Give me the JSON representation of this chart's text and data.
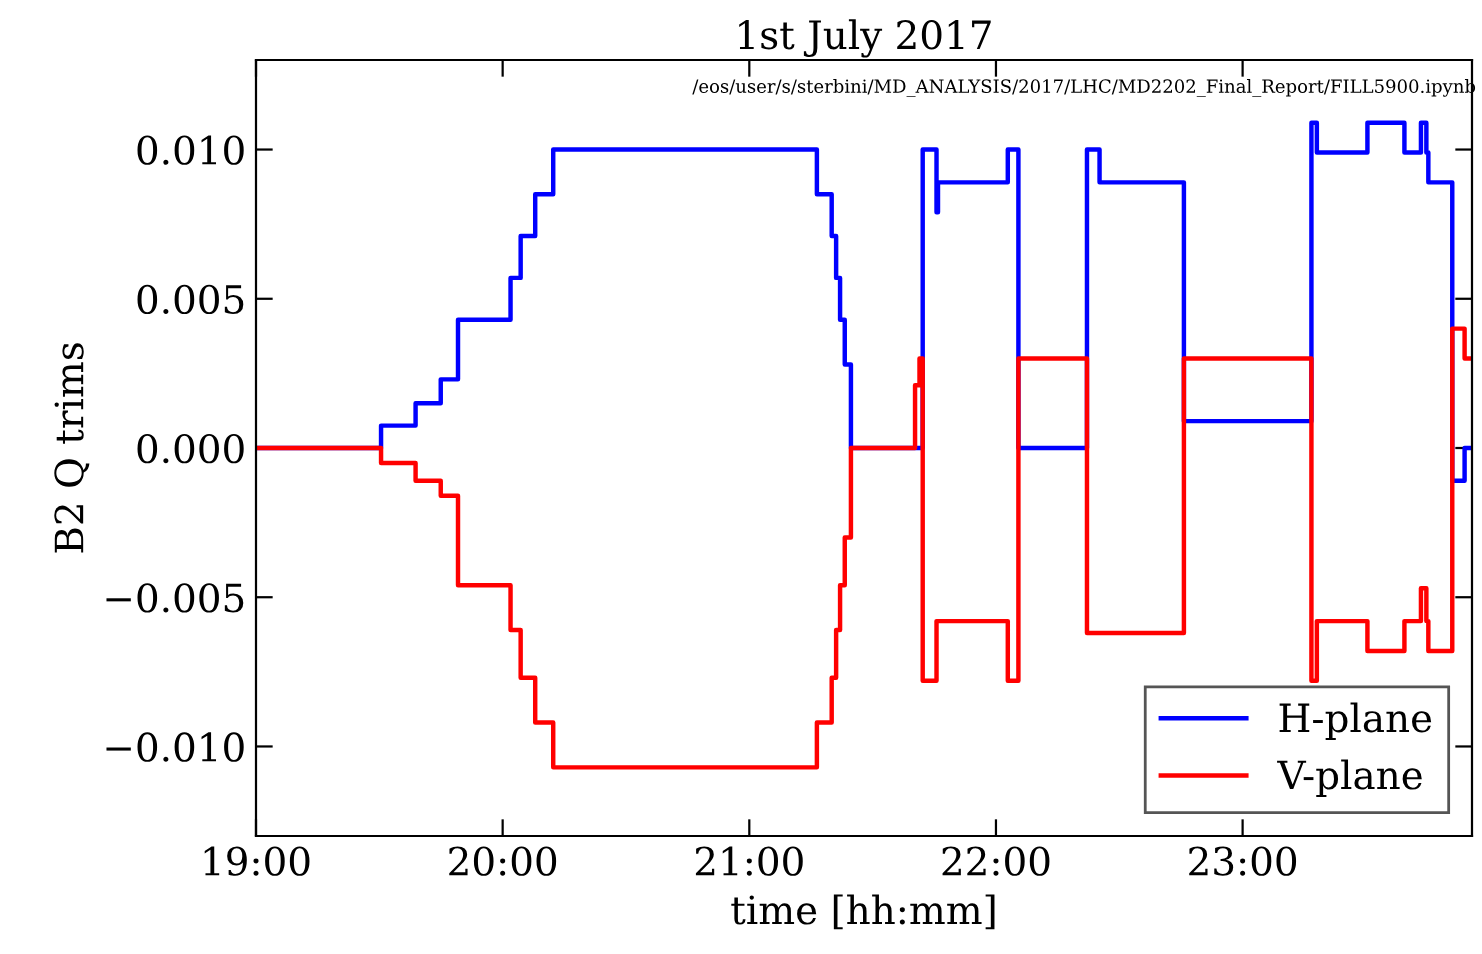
{
  "chart_data": {
    "type": "step",
    "title": "1st July 2017",
    "xlabel": "time [hh:mm]",
    "ylabel": "B2 Q trims",
    "annotations": [
      "/eos/user/s/sterbini/MD_ANALYSIS/2017/LHC/MD2202_Final_Report/FILL5900.ipynb"
    ],
    "xlim": [
      19,
      23.93
    ],
    "ylim": [
      -0.013,
      0.013
    ],
    "xticks": [
      {
        "value": 19,
        "label": "19:00"
      },
      {
        "value": 20,
        "label": "20:00"
      },
      {
        "value": 21,
        "label": "21:00"
      },
      {
        "value": 22,
        "label": "22:00"
      },
      {
        "value": 23,
        "label": "23:00"
      }
    ],
    "yticks": [
      {
        "value": -0.01,
        "label": "−0.010"
      },
      {
        "value": -0.005,
        "label": "−0.005"
      },
      {
        "value": 0,
        "label": "0.000"
      },
      {
        "value": 0.005,
        "label": "0.005"
      },
      {
        "value": 0.01,
        "label": "0.010"
      }
    ],
    "grid": false,
    "legend": "bottom right",
    "line_style": "solid",
    "marker": "none",
    "series": [
      {
        "name": "H-plane",
        "color": "#0000ff",
        "x": [
          19.0,
          19.507,
          19.647,
          19.749,
          19.819,
          20.032,
          20.073,
          20.132,
          20.205,
          21.274,
          21.334,
          21.352,
          21.368,
          21.387,
          21.412,
          21.703,
          21.759,
          21.765,
          22.048,
          22.091,
          22.369,
          22.42,
          22.762,
          23.279,
          23.301,
          23.506,
          23.656,
          23.723,
          23.745,
          23.753,
          23.85,
          23.9,
          23.93
        ],
        "values": [
          0,
          0.00075,
          0.0015,
          0.0023,
          0.0043,
          0.0057,
          0.0071,
          0.0085,
          0.01,
          0.0085,
          0.0071,
          0.0057,
          0.0043,
          0.0028,
          0,
          0.01,
          0.0079,
          0.0089,
          0.01,
          0,
          0.01,
          0.0089,
          0.0009,
          0.0109,
          0.0099,
          0.0109,
          0.0099,
          0.0109,
          0.0099,
          0.0089,
          -0.0011,
          0,
          0
        ]
      },
      {
        "name": "V-plane",
        "color": "#ff0000",
        "x": [
          19.0,
          19.507,
          19.647,
          19.749,
          19.819,
          20.032,
          20.073,
          20.132,
          20.205,
          21.274,
          21.334,
          21.352,
          21.368,
          21.387,
          21.412,
          21.672,
          21.69,
          21.703,
          21.759,
          22.048,
          22.091,
          22.369,
          22.762,
          23.279,
          23.301,
          23.506,
          23.656,
          23.723,
          23.745,
          23.753,
          23.85,
          23.9,
          23.93
        ],
        "values": [
          0,
          -0.0005,
          -0.0011,
          -0.0016,
          -0.0046,
          -0.0061,
          -0.0077,
          -0.0092,
          -0.0107,
          -0.0092,
          -0.0077,
          -0.0061,
          -0.0046,
          -0.003,
          0,
          0.0021,
          0.003,
          -0.0078,
          -0.0058,
          -0.0078,
          0.003,
          -0.0062,
          0.003,
          -0.0078,
          -0.0058,
          -0.0068,
          -0.0058,
          -0.0047,
          -0.0058,
          -0.0068,
          0.004,
          0.003,
          0.003
        ]
      }
    ]
  }
}
